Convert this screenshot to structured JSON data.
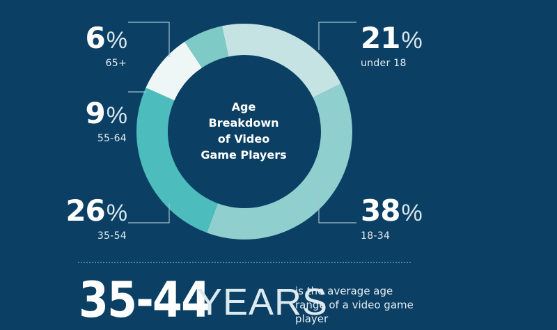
{
  "chart_data": {
    "type": "pie",
    "donut": true,
    "title": "Age Breakdown of Video Game Players",
    "slices": [
      {
        "label": "under 18",
        "value": 21,
        "color": "#c6e3e4"
      },
      {
        "label": "18-34",
        "value": 38,
        "color": "#8fd0cf"
      },
      {
        "label": "35-54",
        "value": 26,
        "color": "#4cbcbd"
      },
      {
        "label": "55-64",
        "value": 9,
        "color": "#eef6f6"
      },
      {
        "label": "65+",
        "value": 6,
        "color": "#7ecac6"
      }
    ],
    "value_suffix": "%"
  },
  "center_title_lines": [
    "Age",
    "Breakdown",
    "of Video",
    "Game Players"
  ],
  "callouts": {
    "c65": {
      "value": "6",
      "sign": "%",
      "label": "65+"
    },
    "c55": {
      "value": "9",
      "sign": "%",
      "label": "55-64"
    },
    "c35": {
      "value": "26",
      "sign": "%",
      "label": "35-54"
    },
    "cu18": {
      "value": "21",
      "sign": "%",
      "label": "under 18"
    },
    "c18": {
      "value": "38",
      "sign": "%",
      "label": "18-34"
    }
  },
  "average": {
    "range": "35-44",
    "unit": "YEARS",
    "description": "is the average age range of a video game player"
  },
  "colors": {
    "background": "#0b3f63",
    "leader_line": "#9fc4d3",
    "divider": "#3d8ca3"
  }
}
